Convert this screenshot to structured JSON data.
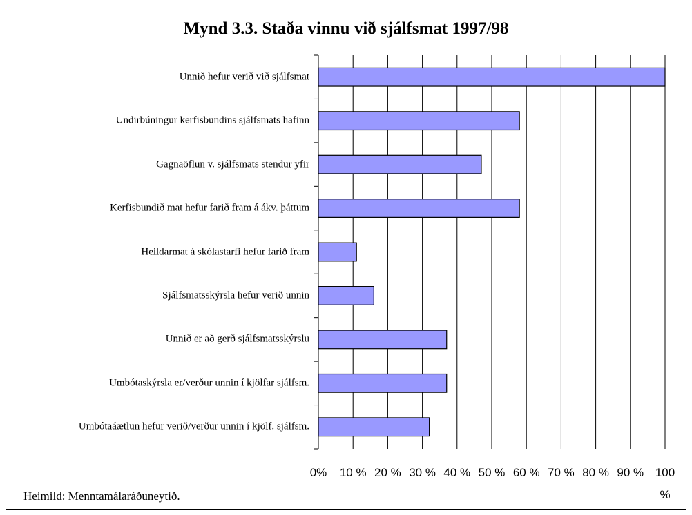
{
  "chart_data": {
    "type": "hbar",
    "title": "Mynd 3.3. Staða vinnu við sjálfsmat 1997/98",
    "categories": [
      "Unnið hefur verið við sjálfsmat",
      "Undirbúningur kerfisbundins sjálfsmats hafinn",
      "Gagnaöflun v. sjálfsmats stendur yfir",
      "Kerfisbundið mat hefur farið fram á ákv. þáttum",
      "Heildarmat á skólastarfi hefur farið fram",
      "Sjálfsmatsskýrsla hefur verið unnin",
      "Unnið er að gerð sjálfsmatsskýrslu",
      "Umbótaskýrsla er/verður unnin í kjölfar sjálfsm.",
      "Umbótaáætlun hefur verið/verður unnin í kjölf. sjálfsm."
    ],
    "values": [
      100,
      58,
      47,
      58,
      11,
      16,
      37,
      37,
      32
    ],
    "color": "#9999ff",
    "xlim": [
      0,
      100
    ],
    "xticks": [
      {
        "value": 0,
        "label": "0%"
      },
      {
        "value": 10,
        "label": "10 %"
      },
      {
        "value": 20,
        "label": "20 %"
      },
      {
        "value": 30,
        "label": "30 %"
      },
      {
        "value": 40,
        "label": "40 %"
      },
      {
        "value": 50,
        "label": "50 %"
      },
      {
        "value": 60,
        "label": "60 %"
      },
      {
        "value": 70,
        "label": "70 %"
      },
      {
        "value": 80,
        "label": "80 %"
      },
      {
        "value": 90,
        "label": "90 %"
      },
      {
        "value": 100,
        "label": "100 %"
      }
    ],
    "grid": true,
    "source": "Heimild: Menntamálaráðuneytið."
  }
}
